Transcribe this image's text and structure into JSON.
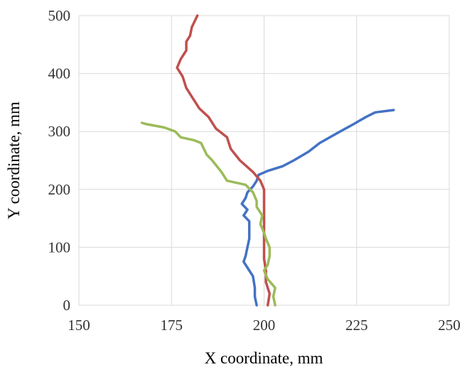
{
  "chart_data": {
    "type": "line",
    "xlabel": "X coordinate, mm",
    "ylabel": "Y coordinate, mm",
    "xlim": [
      150,
      250
    ],
    "ylim": [
      0,
      500
    ],
    "xticks": [
      150,
      175,
      200,
      225,
      250
    ],
    "yticks": [
      0,
      100,
      200,
      300,
      400,
      500
    ],
    "grid": true,
    "legend": "none",
    "series": [
      {
        "color": "#4472C4",
        "points": [
          [
            198,
            0
          ],
          [
            197.5,
            15
          ],
          [
            197.5,
            30
          ],
          [
            197,
            50
          ],
          [
            195.5,
            65
          ],
          [
            194.5,
            75
          ],
          [
            195,
            85
          ],
          [
            195.5,
            100
          ],
          [
            196,
            115
          ],
          [
            196,
            130
          ],
          [
            196,
            145
          ],
          [
            194.5,
            155
          ],
          [
            195.5,
            165
          ],
          [
            194,
            175
          ],
          [
            195,
            185
          ],
          [
            195.5,
            195
          ],
          [
            197,
            205
          ],
          [
            198,
            215
          ],
          [
            198.5,
            225
          ],
          [
            201,
            232
          ],
          [
            205,
            240
          ],
          [
            208,
            250
          ],
          [
            212,
            265
          ],
          [
            215,
            280
          ],
          [
            220,
            298
          ],
          [
            224,
            312
          ],
          [
            227.5,
            325
          ],
          [
            230,
            333
          ],
          [
            235,
            337
          ]
        ]
      },
      {
        "color": "#C0504D",
        "points": [
          [
            201,
            0
          ],
          [
            201.5,
            20
          ],
          [
            200.5,
            40
          ],
          [
            200.5,
            60
          ],
          [
            200,
            80
          ],
          [
            200,
            100
          ],
          [
            200,
            120
          ],
          [
            200,
            140
          ],
          [
            200,
            160
          ],
          [
            200,
            180
          ],
          [
            200,
            200
          ],
          [
            199,
            215
          ],
          [
            197,
            230
          ],
          [
            193.5,
            250
          ],
          [
            191,
            270
          ],
          [
            190,
            290
          ],
          [
            187,
            305
          ],
          [
            185,
            325
          ],
          [
            182.5,
            340
          ],
          [
            181,
            355
          ],
          [
            179,
            375
          ],
          [
            178,
            395
          ],
          [
            176.5,
            410
          ],
          [
            177.5,
            425
          ],
          [
            179,
            440
          ],
          [
            179,
            455
          ],
          [
            180,
            465
          ],
          [
            180.5,
            480
          ],
          [
            182,
            500
          ]
        ]
      },
      {
        "color": "#9BBB59",
        "points": [
          [
            203,
            0
          ],
          [
            202.5,
            15
          ],
          [
            203,
            30
          ],
          [
            201,
            45
          ],
          [
            200,
            60
          ],
          [
            201,
            70
          ],
          [
            201.5,
            85
          ],
          [
            201.5,
            100
          ],
          [
            200.5,
            115
          ],
          [
            200,
            125
          ],
          [
            199,
            140
          ],
          [
            199.5,
            155
          ],
          [
            198,
            170
          ],
          [
            198,
            180
          ],
          [
            197,
            195
          ],
          [
            195,
            208
          ],
          [
            190,
            215
          ],
          [
            188.5,
            230
          ],
          [
            186,
            250
          ],
          [
            184.5,
            260
          ],
          [
            183,
            280
          ],
          [
            181,
            285
          ],
          [
            177.5,
            290
          ],
          [
            176,
            300
          ],
          [
            173,
            307
          ],
          [
            168,
            313
          ],
          [
            167,
            315
          ]
        ]
      }
    ]
  }
}
